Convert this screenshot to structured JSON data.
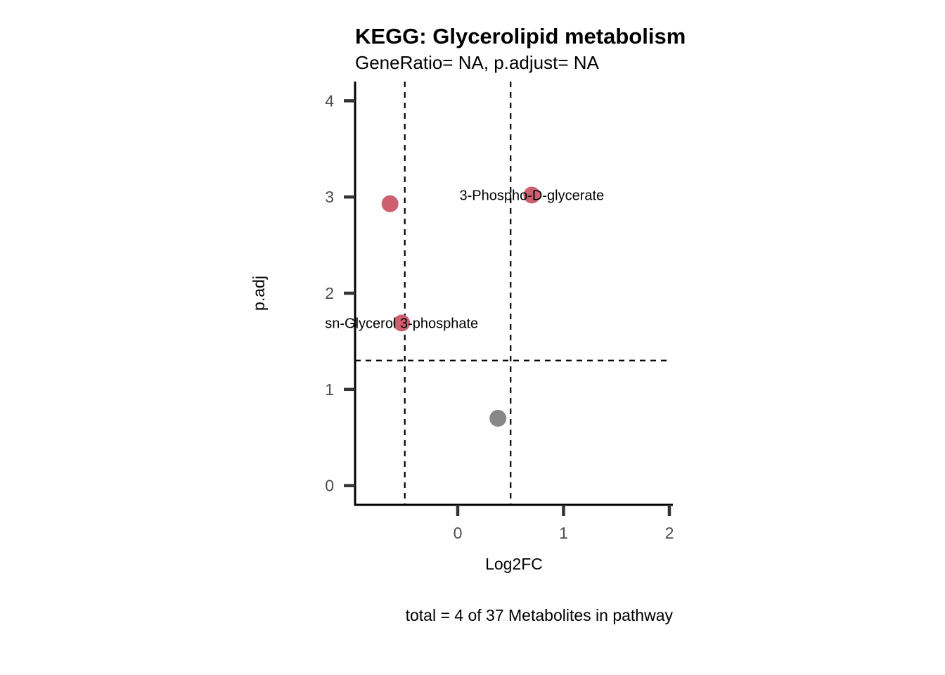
{
  "chart_data": {
    "type": "scatter",
    "title": "KEGG: Glycerolipid metabolism",
    "subtitle": "GeneRatio= NA, p.adjust= NA",
    "xlabel": "Log2FC",
    "ylabel": "p.adj",
    "caption": "total = 4 of 37 Metabolites in pathway",
    "xlim": [
      -0.97,
      2.02
    ],
    "ylim": [
      -0.2,
      4.2
    ],
    "x_ticks": [
      0,
      1,
      2
    ],
    "y_ticks": [
      0,
      1,
      2,
      3,
      4
    ],
    "vlines": [
      -0.5,
      0.5
    ],
    "hline": 1.3,
    "grid": false,
    "points": [
      {
        "x": -0.64,
        "y": 2.93,
        "label": "",
        "color": "#CD6070"
      },
      {
        "x": 0.7,
        "y": 3.02,
        "label": "3-Phospho-D-glycerate",
        "color": "#CD6070"
      },
      {
        "x": -0.53,
        "y": 1.69,
        "label": "sn-Glycerol 3-phosphate",
        "color": "#CD6070"
      },
      {
        "x": 0.38,
        "y": 0.7,
        "label": "",
        "color": "#888888"
      }
    ]
  }
}
